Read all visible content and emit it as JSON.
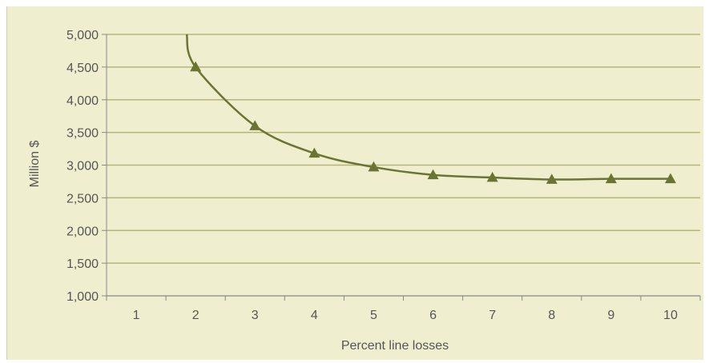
{
  "chart_data": {
    "type": "line",
    "title": "",
    "xlabel": "Percent line losses",
    "ylabel": "Million $",
    "categories": [
      "1",
      "2",
      "3",
      "4",
      "5",
      "6",
      "7",
      "8",
      "9",
      "10"
    ],
    "series": [
      {
        "x": [
          2,
          3,
          4,
          5,
          6,
          7,
          8,
          9,
          10
        ],
        "values": [
          4500,
          3600,
          3180,
          2970,
          2850,
          2810,
          2780,
          2790,
          2790
        ],
        "marker": "triangle"
      }
    ],
    "curve_start": {
      "x": 1.85,
      "y": 5000
    },
    "yticks": [
      "5,000",
      "4,500",
      "4,000",
      "3,500",
      "3,000",
      "2,500",
      "2,000",
      "1,500",
      "1,000"
    ],
    "ylim": [
      1000,
      5000
    ],
    "xlim": [
      0.5,
      10.5
    ],
    "grid": "horizontal",
    "colors": {
      "background": "#efefcf",
      "line": "#6b7533",
      "grid": "#b5b57a",
      "axis": "#888888",
      "text": "#555555"
    }
  }
}
